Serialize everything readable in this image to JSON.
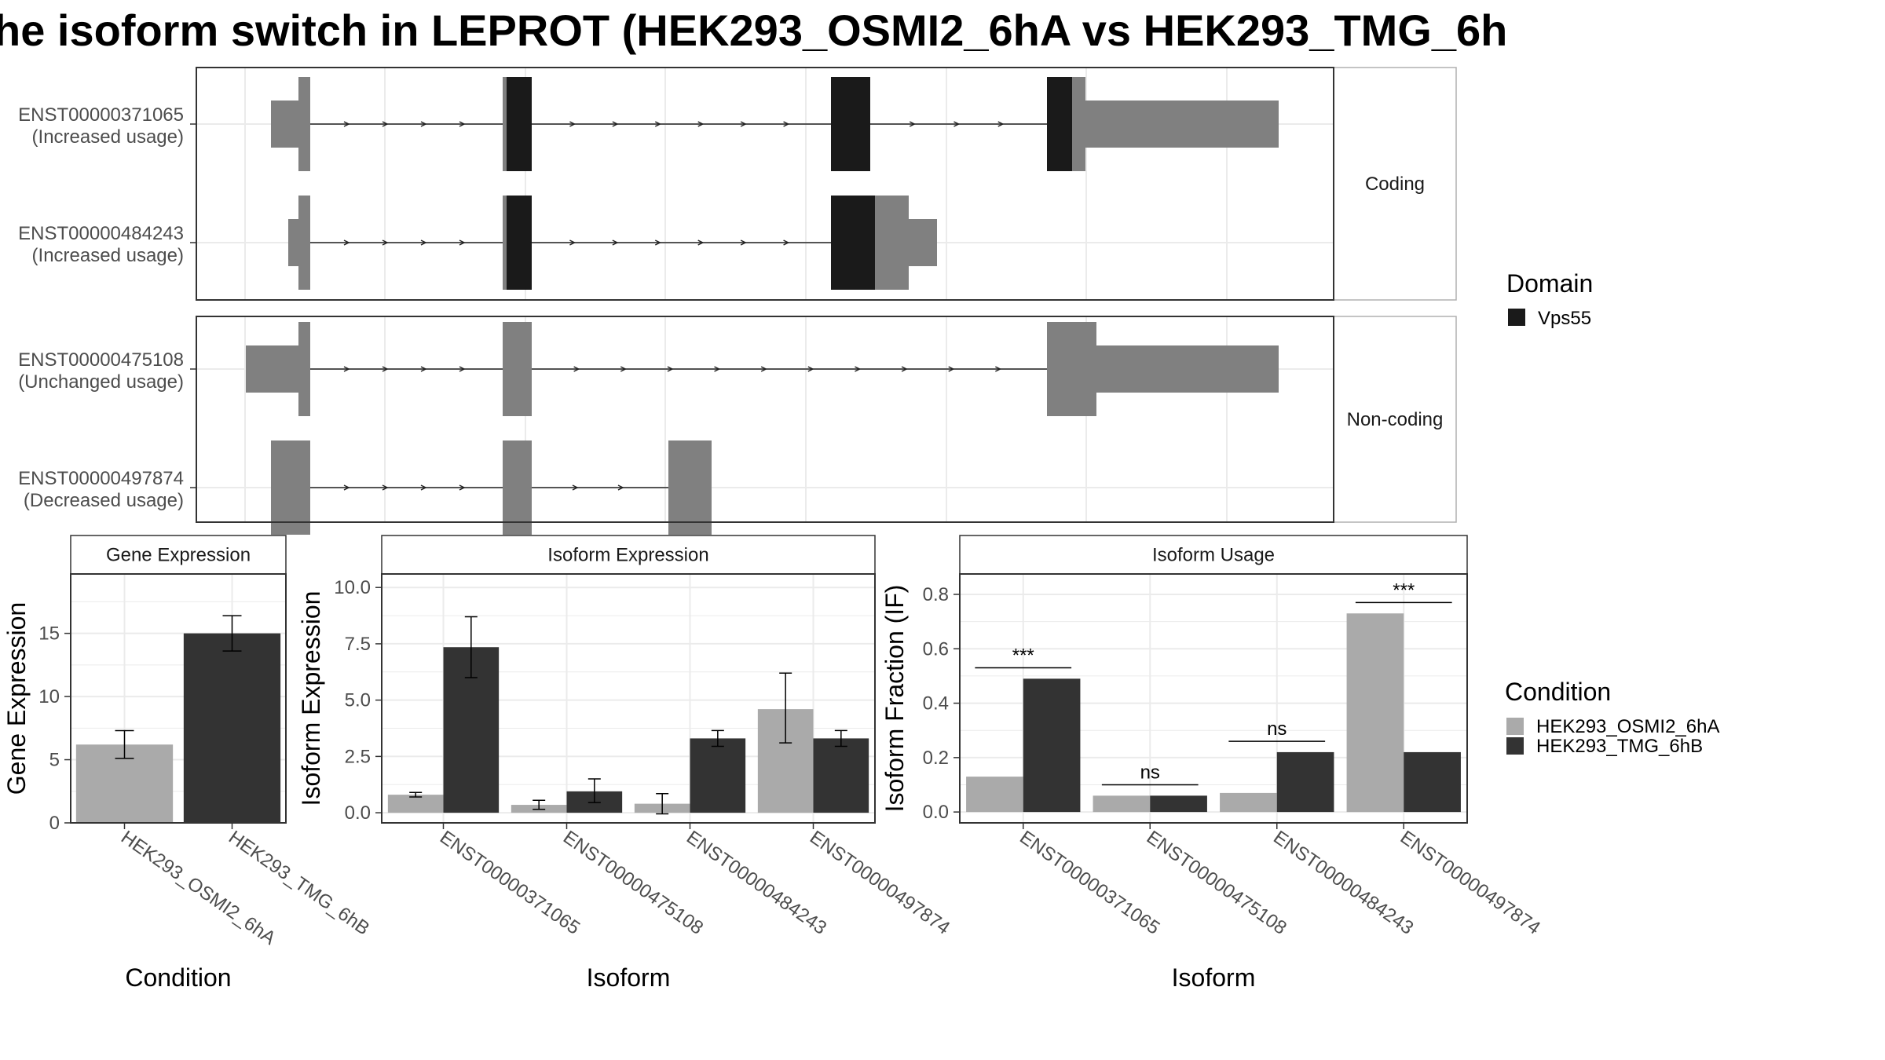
{
  "title": "he isoform switch in LEPROT (HEK293_OSMI2_6hA vs HEK293_TMG_6h",
  "colors": {
    "utr": "#808080",
    "domain": "#1a1a1a",
    "cond_a": "#aaaaaa",
    "cond_b": "#333333",
    "grid": "#ebebeb",
    "strip_bg": "#ffffff",
    "panel_border": "#333333"
  },
  "structure": {
    "facets": [
      "Coding",
      "Non-coding"
    ],
    "transcripts": [
      {
        "id": "ENST00000371065",
        "usage": "(Increased usage)",
        "facet": "Coding",
        "exons": [
          [
            345,
            395,
            "utr",
            30
          ],
          [
            380,
            395,
            "utr",
            60
          ],
          [
            640,
            645,
            "utr",
            60
          ],
          [
            645,
            677,
            "domain",
            60
          ],
          [
            1058,
            1108,
            "domain",
            60
          ],
          [
            1333,
            1365,
            "domain",
            60
          ],
          [
            1365,
            1382,
            "utr",
            60
          ],
          [
            1382,
            1628,
            "utr",
            30
          ]
        ]
      },
      {
        "id": "ENST00000484243",
        "usage": "(Increased usage)",
        "facet": "Coding",
        "exons": [
          [
            367,
            395,
            "utr",
            30
          ],
          [
            380,
            395,
            "utr",
            60
          ],
          [
            640,
            645,
            "utr",
            60
          ],
          [
            645,
            677,
            "domain",
            60
          ],
          [
            1058,
            1114,
            "domain",
            60
          ],
          [
            1114,
            1157,
            "utr",
            60
          ],
          [
            1157,
            1193,
            "utr",
            30
          ]
        ]
      },
      {
        "id": "ENST00000475108",
        "usage": "(Unchanged usage)",
        "facet": "Non-coding",
        "exons": [
          [
            313,
            395,
            "utr",
            30
          ],
          [
            380,
            395,
            "utr",
            60
          ],
          [
            640,
            677,
            "utr",
            60
          ],
          [
            1333,
            1396,
            "utr",
            60
          ],
          [
            1396,
            1628,
            "utr",
            30
          ]
        ]
      },
      {
        "id": "ENST00000497874",
        "usage": "(Decreased usage)",
        "facet": "Non-coding",
        "exons": [
          [
            345,
            395,
            "utr",
            30
          ],
          [
            345,
            395,
            "utr",
            60
          ],
          [
            640,
            677,
            "utr",
            60
          ],
          [
            851,
            906,
            "utr",
            60
          ]
        ]
      }
    ],
    "introns": [
      [
        [
          395,
          640
        ],
        [
          677,
          1058
        ],
        [
          1108,
          1333
        ]
      ],
      [
        [
          395,
          640
        ],
        [
          677,
          1058
        ]
      ],
      [
        [
          395,
          640
        ],
        [
          677,
          1333
        ]
      ],
      [
        [
          395,
          640
        ],
        [
          677,
          851
        ]
      ]
    ]
  },
  "legend_domain": {
    "title": "Domain",
    "items": [
      {
        "label": "Vps55",
        "color": "#1a1a1a"
      }
    ]
  },
  "legend_condition": {
    "title": "Condition",
    "items": [
      {
        "label": "HEK293_OSMI2_6hA",
        "color": "#aaaaaa"
      },
      {
        "label": "HEK293_TMG_6hB",
        "color": "#333333"
      }
    ]
  },
  "chart_data": [
    {
      "type": "bar",
      "strip": "Gene Expression",
      "xlabel": "Condition",
      "ylabel": "Gene Expression",
      "ylim": [
        0,
        19.7
      ],
      "yticks": [
        0,
        5,
        10,
        15
      ],
      "categories": [
        "HEK293_OSMI2_6hA",
        "HEK293_TMG_6hB"
      ],
      "values": [
        6.2,
        15.0
      ],
      "errors": [
        [
          5.1,
          7.3
        ],
        [
          13.6,
          16.4
        ]
      ]
    },
    {
      "type": "bar",
      "strip": "Isoform Expression",
      "xlabel": "Isoform",
      "ylabel": "Isoform Expression",
      "ylim": [
        -0.45,
        10.6
      ],
      "yticks": [
        0.0,
        2.5,
        5.0,
        7.5,
        10.0
      ],
      "yticklabels": [
        "0.0",
        "2.5",
        "5.0",
        "7.5",
        "10.0"
      ],
      "categories": [
        "ENST00000371065",
        "ENST00000475108",
        "ENST00000484243",
        "ENST00000497874"
      ],
      "series": [
        {
          "name": "HEK293_OSMI2_6hA",
          "values": [
            0.8,
            0.35,
            0.4,
            4.6
          ],
          "errors": [
            [
              0.7,
              0.9
            ],
            [
              0.15,
              0.55
            ],
            [
              -0.05,
              0.85
            ],
            [
              3.1,
              6.2
            ]
          ]
        },
        {
          "name": "HEK293_TMG_6hB",
          "values": [
            7.35,
            0.95,
            3.3,
            3.3
          ],
          "errors": [
            [
              6.0,
              8.7
            ],
            [
              0.45,
              1.5
            ],
            [
              2.95,
              3.65
            ],
            [
              2.95,
              3.65
            ]
          ]
        }
      ]
    },
    {
      "type": "bar",
      "strip": "Isoform Usage",
      "xlabel": "Isoform",
      "ylabel": "Isoform Fraction (IF)",
      "ylim": [
        -0.04,
        0.875
      ],
      "yticks": [
        0.0,
        0.2,
        0.4,
        0.6,
        0.8
      ],
      "yticklabels": [
        "0.0",
        "0.2",
        "0.4",
        "0.6",
        "0.8"
      ],
      "categories": [
        "ENST00000371065",
        "ENST00000475108",
        "ENST00000484243",
        "ENST00000497874"
      ],
      "series": [
        {
          "name": "HEK293_OSMI2_6hA",
          "values": [
            0.13,
            0.06,
            0.07,
            0.73
          ]
        },
        {
          "name": "HEK293_TMG_6hB",
          "values": [
            0.49,
            0.06,
            0.22,
            0.22
          ]
        }
      ],
      "significance": [
        {
          "label": "***",
          "y": 0.53
        },
        {
          "label": "ns",
          "y": 0.1
        },
        {
          "label": "ns",
          "y": 0.26
        },
        {
          "label": "***",
          "y": 0.77
        }
      ]
    }
  ]
}
